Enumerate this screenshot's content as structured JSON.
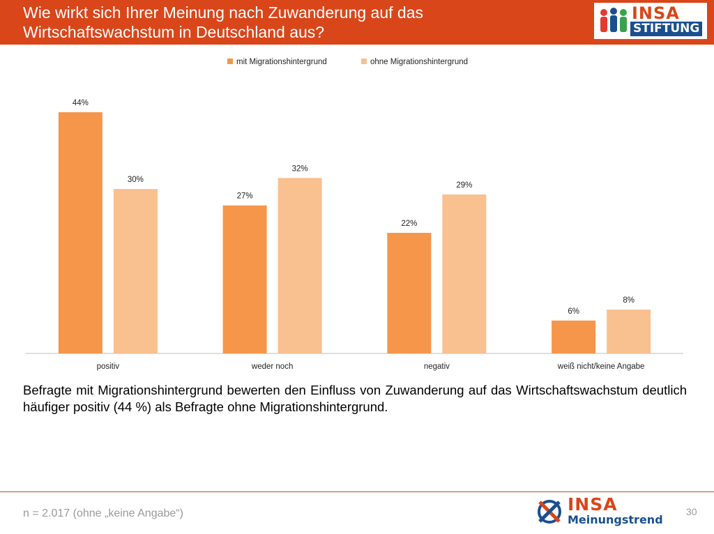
{
  "title": {
    "line1": "Wie wirkt sich Ihrer Meinung nach Zuwanderung auf das",
    "line2": "Wirtschaftswachstum in Deutschland aus?"
  },
  "logo": {
    "brand": "INSA",
    "sub": "STIFTUNG",
    "accent": "#d9461a",
    "blue": "#1a4f8f"
  },
  "chart_data": {
    "type": "bar",
    "categories": [
      "positiv",
      "weder noch",
      "negativ",
      "weiß nicht/keine Angabe"
    ],
    "series": [
      {
        "name": "mit Migrationshintergrund",
        "values": [
          44,
          27,
          22,
          6
        ],
        "color": "#f5964a"
      },
      {
        "name": "ohne Migrationshintergrund",
        "values": [
          30,
          32,
          29,
          8
        ],
        "color": "#f9c090"
      }
    ],
    "value_suffix": "%",
    "ylim": [
      0,
      44
    ],
    "legend_position": "top-center",
    "grid": false
  },
  "summary": "Befragte mit Migrationshintergrund bewerten den Einfluss von Zuwanderung auf das Wirtschaftswachstum deutlich häufiger positiv (44 %) als Befragte ohne Migrationshintergrund.",
  "footer": {
    "note": "n = 2.017 (ohne „keine Angabe“)",
    "page": "30",
    "brand": "INSA",
    "brand_sub": "Meinungstrend"
  }
}
